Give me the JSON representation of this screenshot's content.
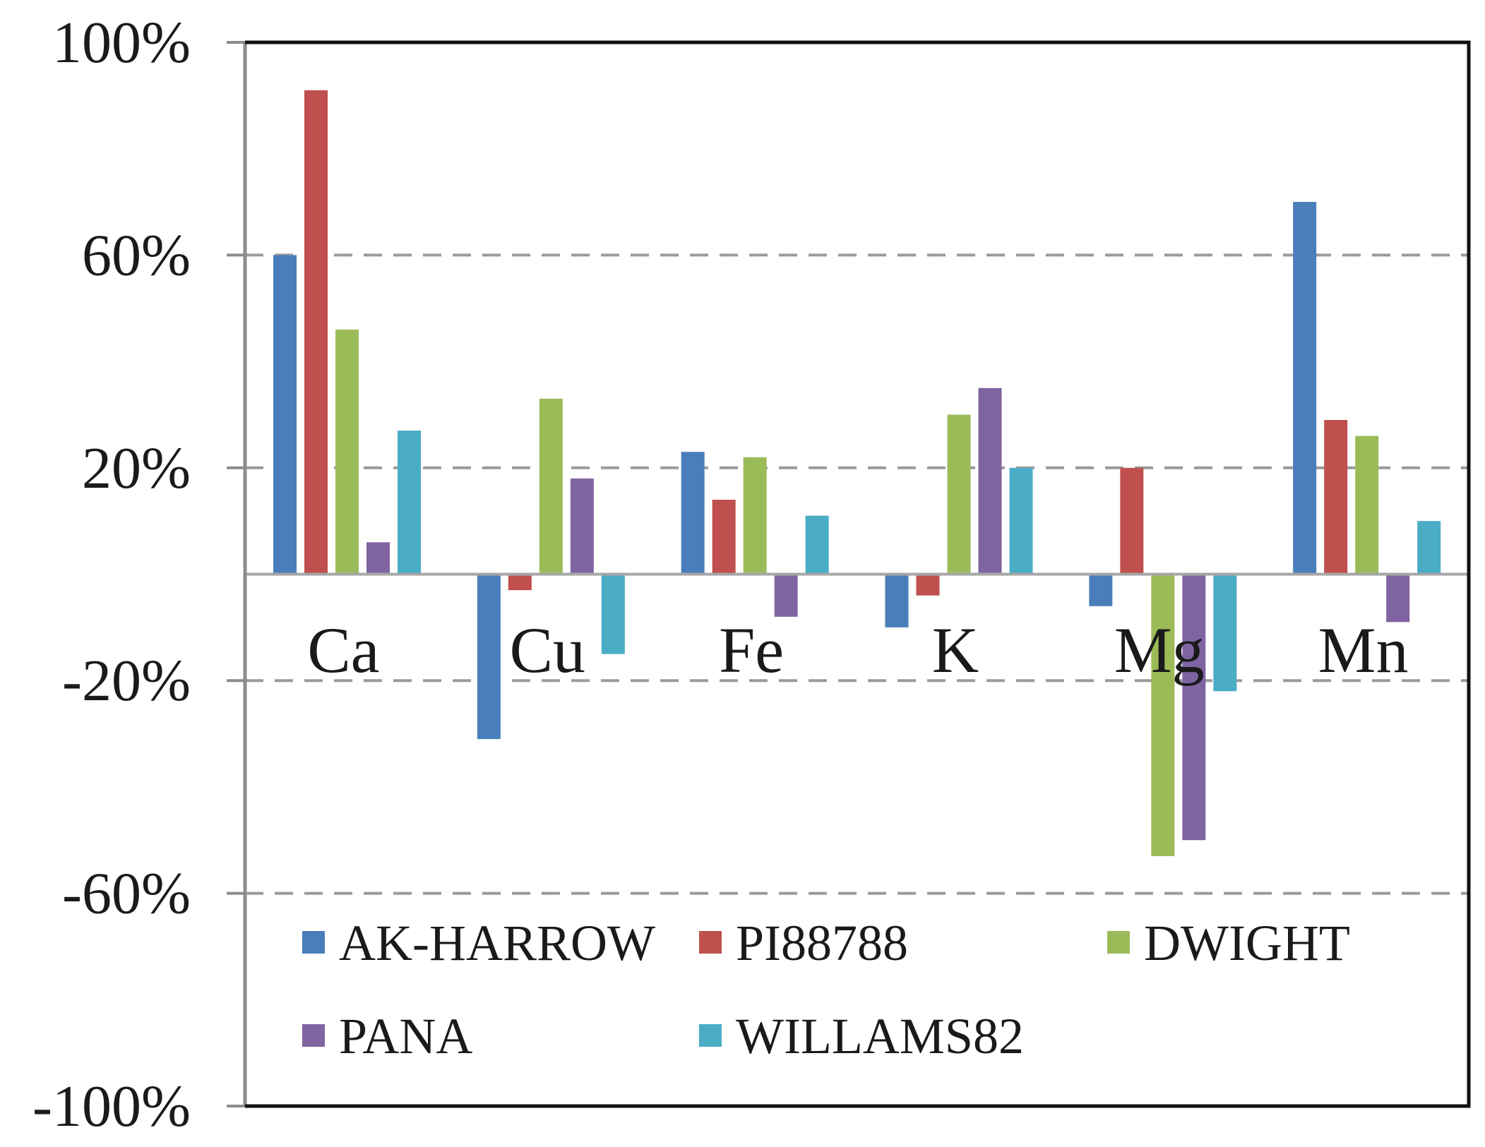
{
  "chart_data": {
    "type": "bar",
    "title": "",
    "xlabel": "",
    "ylabel": "",
    "categories": [
      "Ca",
      "Cu",
      "Fe",
      "K",
      "Mg",
      "Mn"
    ],
    "series": [
      {
        "name": "AK-HARROW",
        "color": "#4a7ebb",
        "values": [
          60,
          -31,
          23,
          -10,
          -6,
          70
        ]
      },
      {
        "name": "PI88788",
        "color": "#c0504d",
        "values": [
          91,
          -3,
          14,
          -4,
          20,
          29
        ]
      },
      {
        "name": "DWIGHT",
        "color": "#9bbb59",
        "values": [
          46,
          33,
          22,
          30,
          -53,
          26
        ]
      },
      {
        "name": "PANA",
        "color": "#8064a2",
        "values": [
          6,
          18,
          -8,
          35,
          -50,
          -9
        ]
      },
      {
        "name": "WILLAMS82",
        "color": "#4bacc6",
        "values": [
          27,
          -15,
          11,
          20,
          -22,
          10
        ]
      }
    ],
    "ylim": [
      -100,
      100
    ],
    "yticks": [
      100,
      60,
      20,
      -20,
      -60,
      -100
    ],
    "ytick_labels": [
      "100%",
      "60%",
      "20%",
      "-20%",
      "-60%",
      "-100%"
    ],
    "grid": "dashed horizontal",
    "legend": "bottom-inside"
  }
}
